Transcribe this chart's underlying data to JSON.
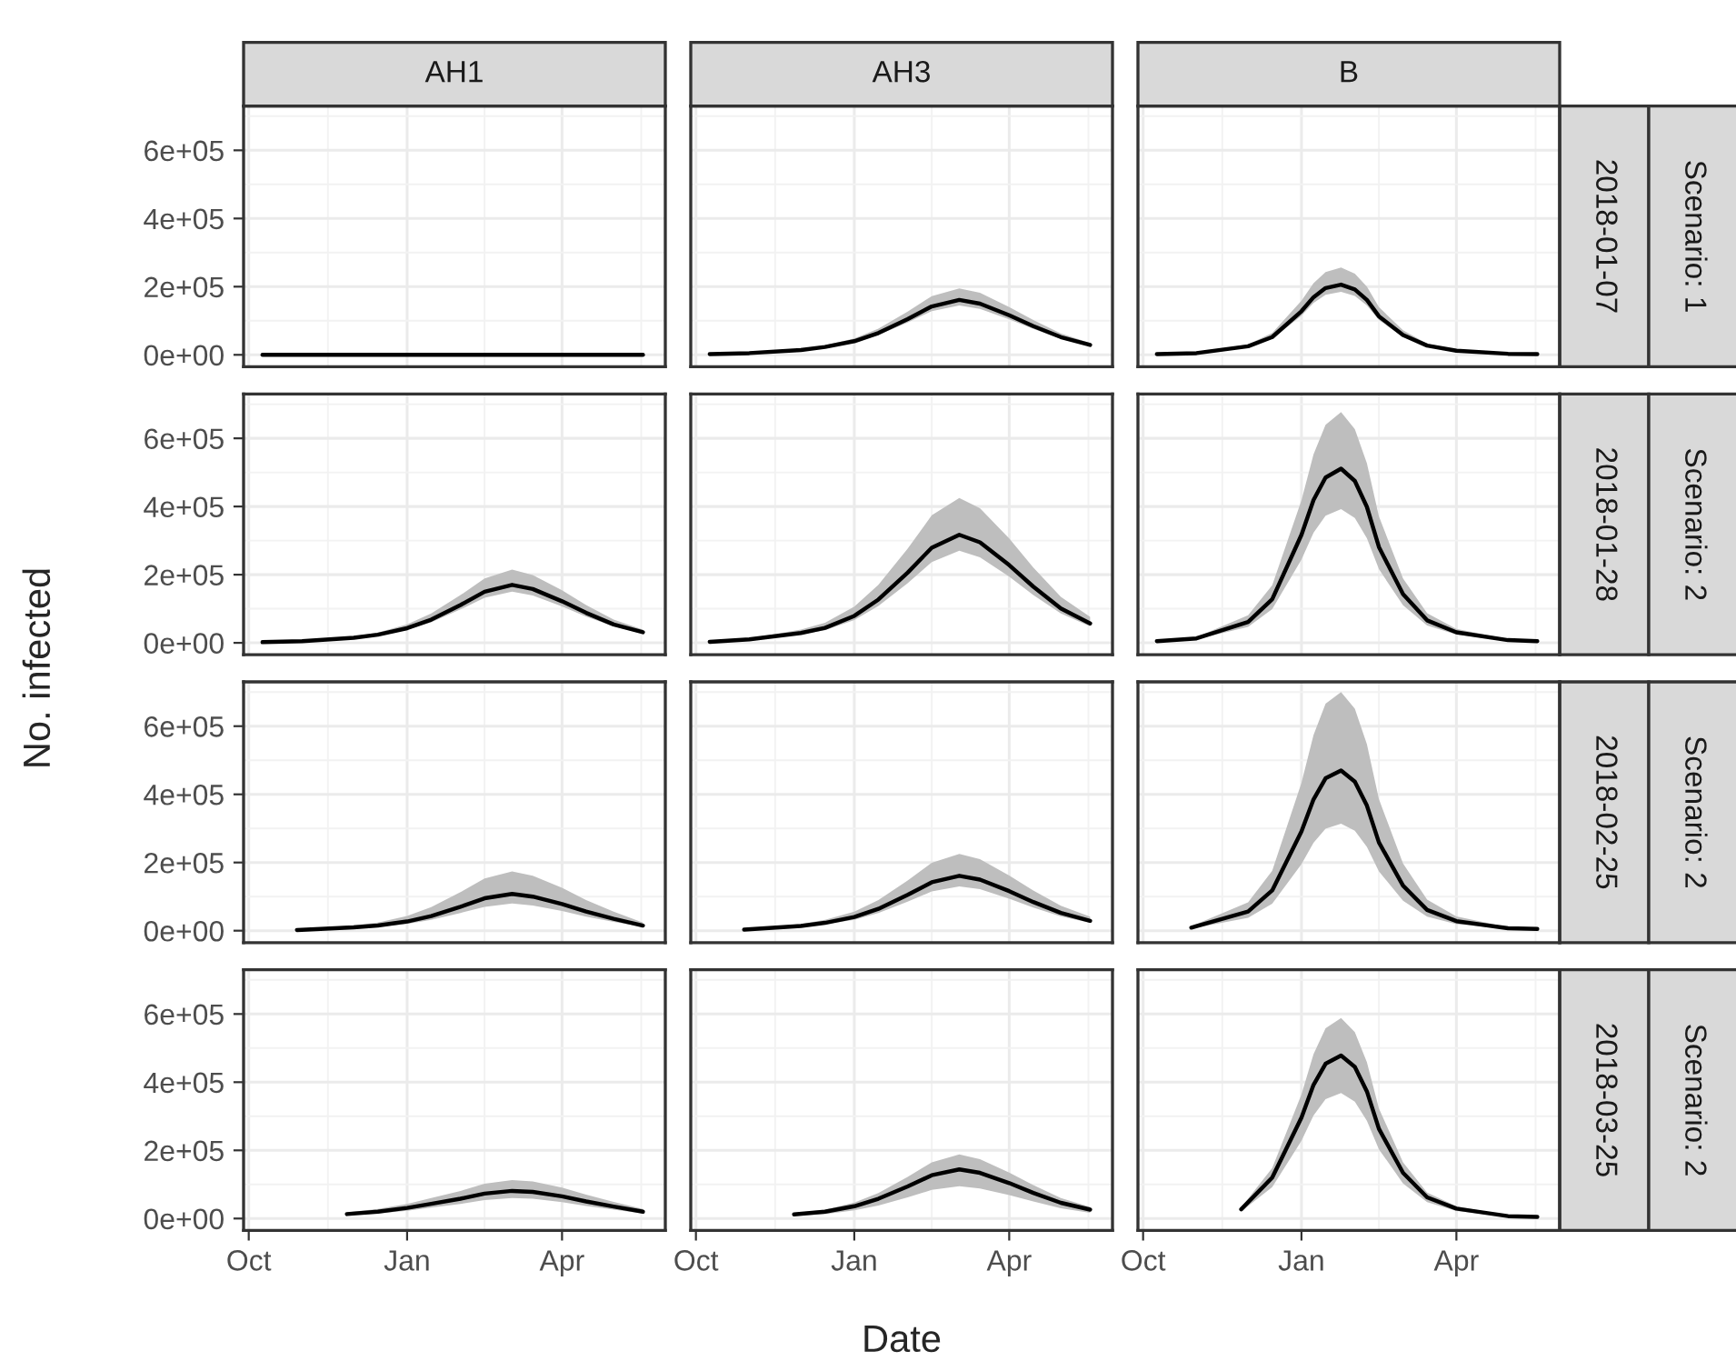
{
  "chart_data": [
    {
      "type": "line",
      "title": "AH1",
      "tick_labels": "y",
      "grid": true,
      "xlim": [
        "2017-09-28",
        "2018-05-31"
      ],
      "xticks": [
        {
          "value": "2017-10-01",
          "label": null
        },
        {
          "value": "2018-01-01",
          "label": null
        },
        {
          "value": "2018-04-01",
          "label": null
        }
      ],
      "ylim": [
        -35000,
        730000
      ],
      "yticks": [
        {
          "value": 0,
          "label": "0e+00"
        },
        {
          "value": 200000,
          "label": "2e+05"
        },
        {
          "value": 400000,
          "label": "4e+05"
        },
        {
          "value": 600000,
          "label": "6e+05"
        }
      ],
      "x": [
        "2017-10-09",
        "2017-11-01",
        "2017-12-01",
        "2017-12-15",
        "2018-01-01",
        "2018-01-15",
        "2018-02-01",
        "2018-02-15",
        "2018-03-03",
        "2018-03-15",
        "2018-04-01",
        "2018-04-15",
        "2018-05-01",
        "2018-05-18"
      ],
      "series": [
        {
          "color": "#000000",
          "values": [
            0,
            0,
            0,
            0,
            0,
            0,
            0,
            0,
            0,
            0,
            0,
            0,
            0,
            0
          ]
        }
      ]
    },
    {
      "type": "line",
      "title": "AH3",
      "tick_labels": false,
      "grid": true,
      "xlim": [
        "2017-09-28",
        "2018-05-31"
      ],
      "xticks": [
        {
          "value": "2017-10-01",
          "label": null
        },
        {
          "value": "2018-01-01",
          "label": null
        },
        {
          "value": "2018-04-01",
          "label": null
        }
      ],
      "ylim": [
        -35000,
        730000
      ],
      "yticks": [
        {
          "value": 0,
          "label": null
        },
        {
          "value": 200000,
          "label": null
        },
        {
          "value": 400000,
          "label": null
        },
        {
          "value": 600000,
          "label": null
        }
      ],
      "x": [
        "2017-10-09",
        "2017-11-01",
        "2017-12-01",
        "2017-12-15",
        "2018-01-01",
        "2018-01-15",
        "2018-02-01",
        "2018-02-15",
        "2018-03-03",
        "2018-03-15",
        "2018-04-01",
        "2018-04-15",
        "2018-05-01",
        "2018-05-18"
      ],
      "series": [
        {
          "color": "#000000",
          "values": [
            2000,
            5000,
            14000,
            23000,
            40000,
            64000,
            105000,
            142000,
            161000,
            150000,
            116000,
            84000,
            52000,
            29000
          ],
          "upper": [
            2000,
            6000,
            17000,
            28000,
            48000,
            77000,
            127000,
            172000,
            195000,
            182000,
            140000,
            102000,
            63000,
            35000
          ],
          "lower": [
            2000,
            4000,
            13000,
            21000,
            36000,
            58000,
            95000,
            128000,
            145000,
            135000,
            104000,
            76000,
            47000,
            26000
          ]
        }
      ]
    },
    {
      "type": "line",
      "title": "B",
      "tick_labels": false,
      "grid": true,
      "annotations": [
        "2018-01-07",
        "Scenario: 1"
      ],
      "xlim": [
        "2017-09-28",
        "2018-05-31"
      ],
      "xticks": [
        {
          "value": "2017-10-01",
          "label": null
        },
        {
          "value": "2018-01-01",
          "label": null
        },
        {
          "value": "2018-04-01",
          "label": null
        }
      ],
      "ylim": [
        -35000,
        730000
      ],
      "yticks": [
        {
          "value": 0,
          "label": null
        },
        {
          "value": 200000,
          "label": null
        },
        {
          "value": 400000,
          "label": null
        },
        {
          "value": 600000,
          "label": null
        }
      ],
      "x": [
        "2017-10-09",
        "2017-11-01",
        "2017-12-01",
        "2017-12-15",
        "2018-01-01",
        "2018-01-08",
        "2018-01-15",
        "2018-01-24",
        "2018-02-01",
        "2018-02-08",
        "2018-02-15",
        "2018-03-01",
        "2018-03-15",
        "2018-04-01",
        "2018-05-01",
        "2018-05-18"
      ],
      "series": [
        {
          "color": "#000000",
          "values": [
            2000,
            5000,
            25000,
            52000,
            128000,
            169000,
            196000,
            206000,
            192000,
            161000,
            113000,
            58000,
            27000,
            12000,
            3000,
            2000
          ],
          "upper": [
            2000,
            6000,
            31000,
            64000,
            159000,
            210000,
            243000,
            256000,
            238000,
            200000,
            140000,
            72000,
            33000,
            15000,
            4000,
            2000
          ],
          "lower": [
            2000,
            4000,
            22000,
            47000,
            115000,
            152000,
            176000,
            185000,
            173000,
            145000,
            102000,
            52000,
            24000,
            11000,
            3000,
            2000
          ]
        }
      ]
    },
    {
      "type": "line",
      "tick_labels": "y",
      "grid": true,
      "xlim": [
        "2017-09-28",
        "2018-05-31"
      ],
      "xticks": [
        {
          "value": "2017-10-01",
          "label": null
        },
        {
          "value": "2018-01-01",
          "label": null
        },
        {
          "value": "2018-04-01",
          "label": null
        }
      ],
      "ylim": [
        -35000,
        730000
      ],
      "yticks": [
        {
          "value": 0,
          "label": "0e+00"
        },
        {
          "value": 200000,
          "label": "2e+05"
        },
        {
          "value": 400000,
          "label": "4e+05"
        },
        {
          "value": 600000,
          "label": "6e+05"
        }
      ],
      "x": [
        "2017-10-09",
        "2017-11-01",
        "2017-12-01",
        "2017-12-15",
        "2018-01-01",
        "2018-01-15",
        "2018-02-01",
        "2018-02-15",
        "2018-03-03",
        "2018-03-15",
        "2018-04-01",
        "2018-04-15",
        "2018-05-01",
        "2018-05-18"
      ],
      "series": [
        {
          "color": "#000000",
          "values": [
            2000,
            5000,
            15000,
            24000,
            43000,
            68000,
            111000,
            150000,
            170000,
            158000,
            122000,
            88000,
            54000,
            31000
          ],
          "upper": [
            3000,
            6000,
            19000,
            30000,
            54000,
            86000,
            140000,
            189000,
            215000,
            199000,
            154000,
            111000,
            68000,
            39000
          ],
          "lower": [
            2000,
            4000,
            13000,
            21000,
            38000,
            60000,
            98000,
            132000,
            150000,
            139000,
            107000,
            77000,
            48000,
            27000
          ]
        }
      ]
    },
    {
      "type": "line",
      "tick_labels": false,
      "grid": true,
      "xlim": [
        "2017-09-28",
        "2018-05-31"
      ],
      "xticks": [
        {
          "value": "2017-10-01",
          "label": null
        },
        {
          "value": "2018-01-01",
          "label": null
        },
        {
          "value": "2018-04-01",
          "label": null
        }
      ],
      "ylim": [
        -35000,
        730000
      ],
      "yticks": [
        {
          "value": 0,
          "label": null
        },
        {
          "value": 200000,
          "label": null
        },
        {
          "value": 400000,
          "label": null
        },
        {
          "value": 600000,
          "label": null
        }
      ],
      "x": [
        "2017-10-09",
        "2017-11-01",
        "2017-12-01",
        "2017-12-15",
        "2018-01-01",
        "2018-01-15",
        "2018-02-01",
        "2018-02-15",
        "2018-03-03",
        "2018-03-15",
        "2018-04-01",
        "2018-04-15",
        "2018-05-01",
        "2018-05-18"
      ],
      "series": [
        {
          "color": "#000000",
          "values": [
            3000,
            10000,
            29000,
            44000,
            79000,
            127000,
            206000,
            279000,
            317000,
            295000,
            228000,
            165000,
            101000,
            57000
          ],
          "upper": [
            4000,
            13000,
            39000,
            59000,
            106000,
            170000,
            276000,
            374000,
            425000,
            395000,
            306000,
            221000,
            135000,
            76000
          ],
          "lower": [
            3000,
            9000,
            25000,
            37000,
            67000,
            108000,
            175000,
            237000,
            270000,
            251000,
            194000,
            140000,
            86000,
            48000
          ]
        }
      ]
    },
    {
      "type": "line",
      "tick_labels": false,
      "grid": true,
      "annotations": [
        "2018-01-28",
        "Scenario: 2"
      ],
      "xlim": [
        "2017-09-28",
        "2018-05-31"
      ],
      "xticks": [
        {
          "value": "2017-10-01",
          "label": null
        },
        {
          "value": "2018-01-01",
          "label": null
        },
        {
          "value": "2018-04-01",
          "label": null
        }
      ],
      "ylim": [
        -35000,
        730000
      ],
      "yticks": [
        {
          "value": 0,
          "label": null
        },
        {
          "value": 200000,
          "label": null
        },
        {
          "value": 400000,
          "label": null
        },
        {
          "value": 600000,
          "label": null
        }
      ],
      "x": [
        "2017-10-09",
        "2017-11-01",
        "2017-12-01",
        "2017-12-15",
        "2018-01-01",
        "2018-01-08",
        "2018-01-15",
        "2018-01-24",
        "2018-02-01",
        "2018-02-08",
        "2018-02-15",
        "2018-03-01",
        "2018-03-15",
        "2018-04-01",
        "2018-05-01",
        "2018-05-18"
      ],
      "series": [
        {
          "color": "#000000",
          "values": [
            5000,
            13000,
            61000,
            128000,
            317000,
            419000,
            485000,
            511000,
            475000,
            399000,
            281000,
            143000,
            66000,
            31000,
            8000,
            5000
          ],
          "upper": [
            7000,
            17000,
            81000,
            169000,
            418000,
            553000,
            640000,
            677000,
            627000,
            527000,
            371000,
            189000,
            87000,
            41000,
            11000,
            7000
          ],
          "lower": [
            4000,
            10000,
            47000,
            99000,
            244000,
            323000,
            373000,
            392000,
            366000,
            307000,
            216000,
            110000,
            51000,
            24000,
            6000,
            4000
          ]
        }
      ]
    },
    {
      "type": "line",
      "tick_labels": "y",
      "grid": true,
      "xlim": [
        "2017-09-28",
        "2018-05-31"
      ],
      "xticks": [
        {
          "value": "2017-10-01",
          "label": null
        },
        {
          "value": "2018-01-01",
          "label": null
        },
        {
          "value": "2018-04-01",
          "label": null
        }
      ],
      "ylim": [
        -35000,
        730000
      ],
      "yticks": [
        {
          "value": 0,
          "label": "0e+00"
        },
        {
          "value": 200000,
          "label": "2e+05"
        },
        {
          "value": 400000,
          "label": "4e+05"
        },
        {
          "value": 600000,
          "label": "6e+05"
        }
      ],
      "x": [
        "2017-10-29",
        "2017-12-01",
        "2017-12-15",
        "2018-01-01",
        "2018-01-15",
        "2018-02-01",
        "2018-02-15",
        "2018-03-03",
        "2018-03-15",
        "2018-04-01",
        "2018-04-15",
        "2018-05-01",
        "2018-05-18"
      ],
      "series": [
        {
          "color": "#000000",
          "values": [
            2000,
            10000,
            15000,
            27000,
            43000,
            70000,
            95000,
            108000,
            100000,
            78000,
            56000,
            35000,
            15000
          ],
          "upper": [
            3000,
            16000,
            24000,
            43000,
            69000,
            113000,
            153000,
            174000,
            161000,
            126000,
            90000,
            56000,
            24000
          ],
          "lower": [
            1000,
            7000,
            11000,
            20000,
            32000,
            52000,
            70000,
            80000,
            74000,
            58000,
            41000,
            26000,
            11000
          ]
        }
      ]
    },
    {
      "type": "line",
      "tick_labels": false,
      "grid": true,
      "xlim": [
        "2017-09-28",
        "2018-05-31"
      ],
      "xticks": [
        {
          "value": "2017-10-01",
          "label": null
        },
        {
          "value": "2018-01-01",
          "label": null
        },
        {
          "value": "2018-04-01",
          "label": null
        }
      ],
      "ylim": [
        -35000,
        730000
      ],
      "yticks": [
        {
          "value": 0,
          "label": null
        },
        {
          "value": 200000,
          "label": null
        },
        {
          "value": 400000,
          "label": null
        },
        {
          "value": 600000,
          "label": null
        }
      ],
      "x": [
        "2017-10-29",
        "2017-12-01",
        "2017-12-15",
        "2018-01-01",
        "2018-01-15",
        "2018-02-01",
        "2018-02-15",
        "2018-03-03",
        "2018-03-15",
        "2018-04-01",
        "2018-04-15",
        "2018-05-01",
        "2018-05-18"
      ],
      "series": [
        {
          "color": "#000000",
          "values": [
            3000,
            14000,
            23000,
            40000,
            64000,
            105000,
            142000,
            161000,
            150000,
            116000,
            84000,
            52000,
            29000
          ],
          "upper": [
            4000,
            20000,
            32000,
            56000,
            90000,
            147000,
            199000,
            225000,
            210000,
            162000,
            118000,
            73000,
            41000
          ],
          "lower": [
            2000,
            11000,
            19000,
            32000,
            52000,
            85000,
            115000,
            130000,
            122000,
            94000,
            68000,
            42000,
            23000
          ]
        }
      ]
    },
    {
      "type": "line",
      "tick_labels": false,
      "grid": true,
      "annotations": [
        "2018-02-25",
        "Scenario: 2"
      ],
      "xlim": [
        "2017-09-28",
        "2018-05-31"
      ],
      "xticks": [
        {
          "value": "2017-10-01",
          "label": null
        },
        {
          "value": "2018-01-01",
          "label": null
        },
        {
          "value": "2018-04-01",
          "label": null
        }
      ],
      "ylim": [
        -35000,
        730000
      ],
      "yticks": [
        {
          "value": 0,
          "label": null
        },
        {
          "value": 200000,
          "label": null
        },
        {
          "value": 400000,
          "label": null
        },
        {
          "value": 600000,
          "label": null
        }
      ],
      "x": [
        "2017-10-29",
        "2017-12-01",
        "2017-12-15",
        "2018-01-01",
        "2018-01-08",
        "2018-01-15",
        "2018-01-24",
        "2018-02-01",
        "2018-02-08",
        "2018-02-15",
        "2018-03-01",
        "2018-03-15",
        "2018-04-01",
        "2018-05-01",
        "2018-05-18"
      ],
      "series": [
        {
          "color": "#000000",
          "values": [
            9000,
            56000,
            118000,
            291000,
            385000,
            447000,
            470000,
            437000,
            367000,
            259000,
            132000,
            61000,
            28000,
            7000,
            5000
          ],
          "upper": [
            13000,
            83000,
            176000,
            434000,
            574000,
            666000,
            700000,
            651000,
            547000,
            386000,
            197000,
            91000,
            42000,
            10000,
            7000
          ],
          "lower": [
            6000,
            38000,
            79000,
            195000,
            258000,
            299000,
            314000,
            293000,
            246000,
            174000,
            88000,
            41000,
            19000,
            5000,
            3000
          ]
        }
      ]
    },
    {
      "type": "line",
      "grid": true,
      "xlim": [
        "2017-09-28",
        "2018-05-31"
      ],
      "xticks": [
        {
          "value": "2017-10-01",
          "label": "Oct"
        },
        {
          "value": "2018-01-01",
          "label": "Jan"
        },
        {
          "value": "2018-04-01",
          "label": "Apr"
        }
      ],
      "ylim": [
        -35000,
        730000
      ],
      "yticks": [
        {
          "value": 0,
          "label": "0e+00"
        },
        {
          "value": 200000,
          "label": "2e+05"
        },
        {
          "value": 400000,
          "label": "4e+05"
        },
        {
          "value": 600000,
          "label": "6e+05"
        }
      ],
      "x": [
        "2017-11-27",
        "2017-12-15",
        "2018-01-01",
        "2018-01-15",
        "2018-02-01",
        "2018-02-15",
        "2018-03-03",
        "2018-03-15",
        "2018-04-01",
        "2018-04-15",
        "2018-05-01",
        "2018-05-18"
      ],
      "series": [
        {
          "color": "#000000",
          "values": [
            13000,
            20000,
            31000,
            43000,
            58000,
            73000,
            81000,
            78000,
            65000,
            50000,
            35000,
            20000
          ],
          "upper": [
            18000,
            28000,
            43000,
            60000,
            81000,
            102000,
            113000,
            109000,
            91000,
            70000,
            49000,
            28000
          ],
          "lower": [
            10000,
            15000,
            23000,
            32000,
            43000,
            54000,
            60000,
            58000,
            48000,
            37000,
            26000,
            15000
          ]
        }
      ]
    },
    {
      "type": "line",
      "tick_labels": "x",
      "grid": true,
      "xlabel": "Date",
      "ylabel": "No. infected",
      "xlim": [
        "2017-09-28",
        "2018-05-31"
      ],
      "xticks": [
        {
          "value": "2017-10-01",
          "label": "Oct"
        },
        {
          "value": "2018-01-01",
          "label": "Jan"
        },
        {
          "value": "2018-04-01",
          "label": "Apr"
        }
      ],
      "ylim": [
        -35000,
        730000
      ],
      "yticks": [
        {
          "value": 0,
          "label": null
        },
        {
          "value": 200000,
          "label": null
        },
        {
          "value": 400000,
          "label": null
        },
        {
          "value": 600000,
          "label": null
        }
      ],
      "x": [
        "2017-11-27",
        "2017-12-15",
        "2018-01-01",
        "2018-01-15",
        "2018-02-01",
        "2018-02-15",
        "2018-03-03",
        "2018-03-15",
        "2018-04-01",
        "2018-04-15",
        "2018-05-01",
        "2018-05-18"
      ],
      "series": [
        {
          "color": "#000000",
          "values": [
            12000,
            20000,
            36000,
            58000,
            94000,
            127000,
            144000,
            134000,
            104000,
            75000,
            46000,
            26000
          ],
          "upper": [
            16000,
            26000,
            47000,
            75000,
            122000,
            165000,
            188000,
            174000,
            135000,
            98000,
            60000,
            34000
          ],
          "lower": [
            8000,
            13000,
            24000,
            38000,
            62000,
            84000,
            95000,
            88000,
            69000,
            50000,
            30000,
            17000
          ]
        }
      ]
    },
    {
      "type": "line",
      "tick_labels": "x",
      "grid": true,
      "annotations": [
        "2018-03-25",
        "Scenario: 2"
      ],
      "xlim": [
        "2017-09-28",
        "2018-05-31"
      ],
      "xticks": [
        {
          "value": "2017-10-01",
          "label": "Oct"
        },
        {
          "value": "2018-01-01",
          "label": "Jan"
        },
        {
          "value": "2018-04-01",
          "label": "Apr"
        }
      ],
      "ylim": [
        -35000,
        730000
      ],
      "yticks": [
        {
          "value": 0,
          "label": null
        },
        {
          "value": 200000,
          "label": null
        },
        {
          "value": 400000,
          "label": null
        },
        {
          "value": 600000,
          "label": null
        }
      ],
      "x": [
        "2017-11-27",
        "2017-12-15",
        "2018-01-01",
        "2018-01-08",
        "2018-01-15",
        "2018-01-24",
        "2018-02-01",
        "2018-02-08",
        "2018-02-15",
        "2018-03-01",
        "2018-03-15",
        "2018-04-01",
        "2018-05-01",
        "2018-05-18"
      ],
      "series": [
        {
          "color": "#000000",
          "values": [
            27000,
            120000,
            296000,
            392000,
            454000,
            478000,
            445000,
            373000,
            263000,
            134000,
            62000,
            29000,
            7000,
            5000
          ],
          "upper": [
            33000,
            148000,
            364000,
            482000,
            558000,
            588000,
            547000,
            459000,
            323000,
            165000,
            76000,
            36000,
            9000,
            6000
          ],
          "lower": [
            21000,
            92000,
            228000,
            302000,
            350000,
            368000,
            343000,
            287000,
            203000,
            103000,
            48000,
            22000,
            5000,
            4000
          ]
        }
      ]
    }
  ]
}
